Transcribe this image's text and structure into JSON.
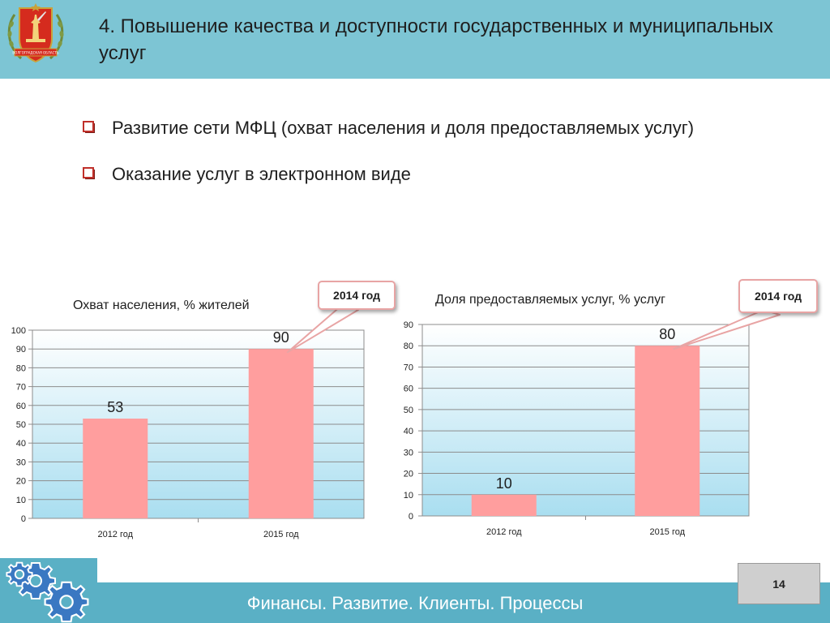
{
  "header": {
    "title": "4. Повышение качества и доступности государственных и муниципальных услуг",
    "emblem_text": "ВОЛГОГРАДСКАЯ ОБЛАСТЬ"
  },
  "bullets": [
    {
      "text": "Развитие сети МФЦ (охват населения и доля предоставляемых услуг)"
    },
    {
      "text": "Оказание услуг в электронном виде"
    }
  ],
  "colors": {
    "header_bg": "#7dc5d4",
    "footer_bg": "#5ab0c5",
    "bar": "#ff9e9e",
    "bullet_red": "#c0302a"
  },
  "chart_data": [
    {
      "type": "bar",
      "title": "Охват населения, % жителей",
      "categories": [
        "2012 год",
        "2015 год"
      ],
      "values": [
        53,
        90
      ],
      "value_labels": [
        "53",
        "90"
      ],
      "ylim": [
        0,
        100
      ],
      "yticks": [
        "0",
        "10",
        "20",
        "30",
        "40",
        "50",
        "60",
        "70",
        "80",
        "90",
        "100"
      ],
      "grid": true,
      "callout": "2014 год",
      "callout_target_index": 1
    },
    {
      "type": "bar",
      "title": "Доля предоставляемых услуг, % услуг",
      "categories": [
        "2012 год",
        "2015 год"
      ],
      "values": [
        10,
        80
      ],
      "value_labels": [
        "10",
        "80"
      ],
      "ylim": [
        0,
        90
      ],
      "yticks": [
        "0",
        "10",
        "20",
        "30",
        "40",
        "50",
        "60",
        "70",
        "80",
        "90"
      ],
      "grid": true,
      "callout": "2014 год",
      "callout_target_index": 1
    }
  ],
  "footer": {
    "text": "Финансы. Развитие. Клиенты. Процессы",
    "page_number": "14"
  }
}
